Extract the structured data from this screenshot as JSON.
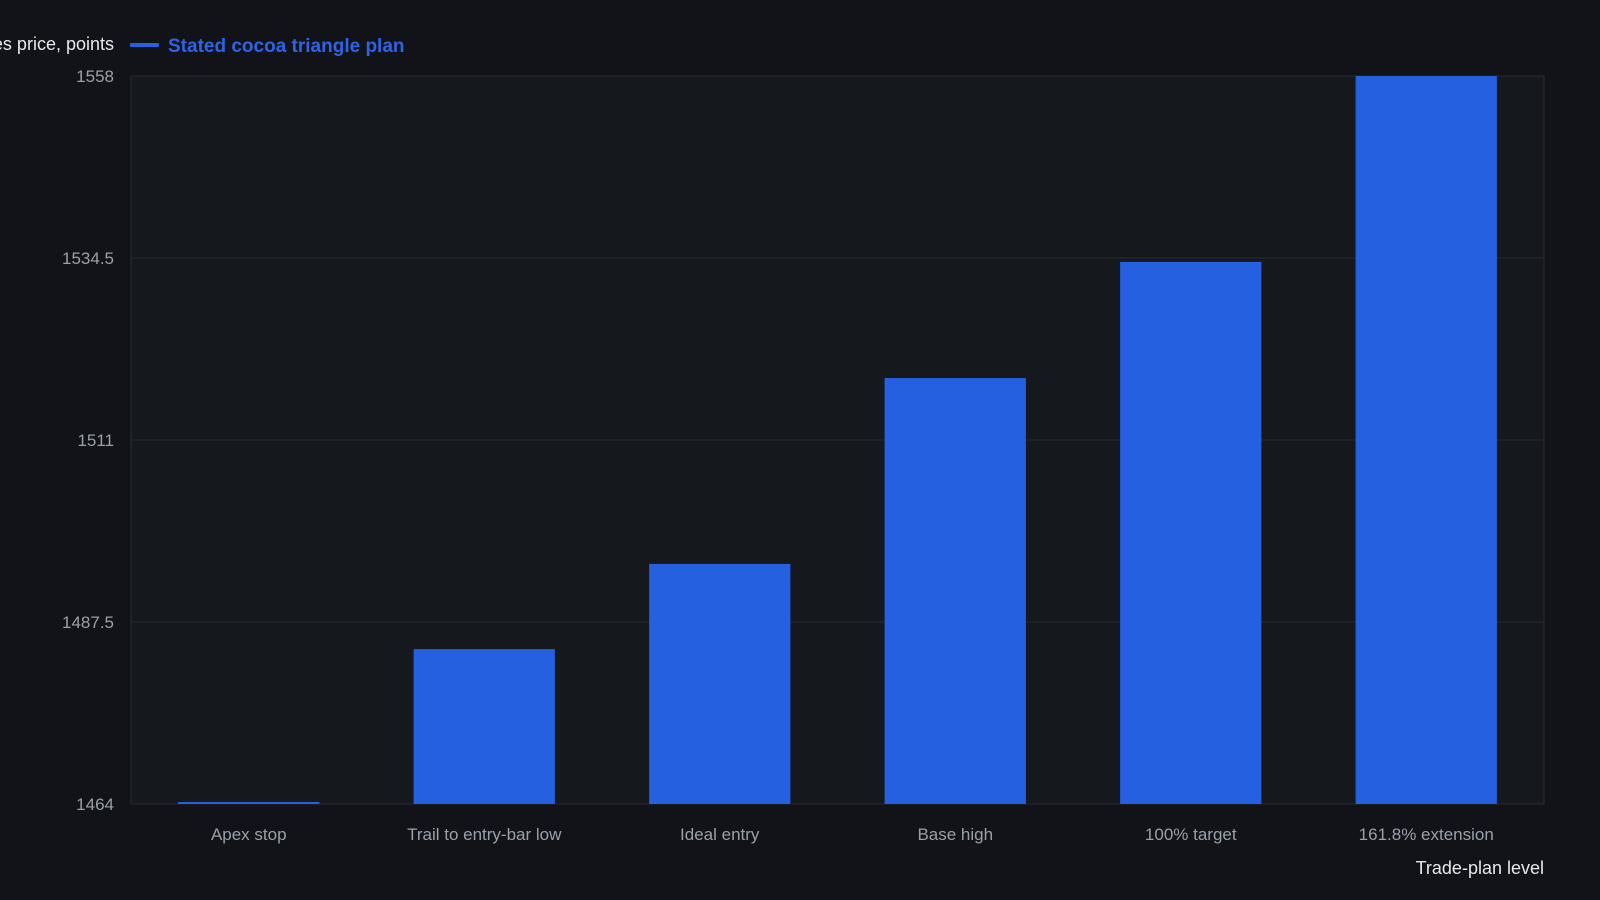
{
  "chart_data": {
    "type": "bar",
    "ylabel": "Cocoa futures price, points",
    "xlabel": "Trade-plan level",
    "legend": {
      "placement": "top-left",
      "entries": [
        "Stated cocoa triangle plan"
      ]
    },
    "series": [
      {
        "name": "Stated cocoa triangle plan",
        "color": "#2560e0",
        "values": [
          1464,
          1484,
          1495,
          1519,
          1534,
          1558
        ]
      }
    ],
    "categories": [
      "Apex stop",
      "Trail to entry-bar low",
      "Ideal entry",
      "Base high",
      "100% target",
      "161.8% extension"
    ],
    "ylim": [
      1464,
      1558
    ],
    "yticks": [
      "1464",
      "1487.5",
      "1511",
      "1534.5",
      "1558"
    ],
    "grid": true
  }
}
